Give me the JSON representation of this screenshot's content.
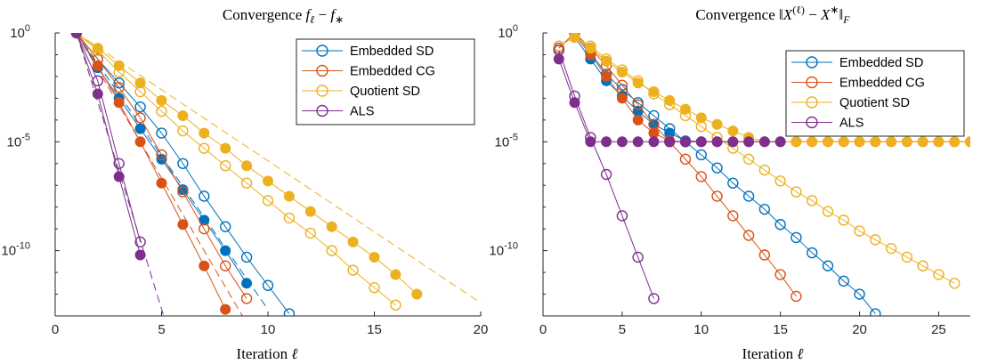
{
  "colors": {
    "embedded_sd": "#0072BD",
    "embedded_cg": "#D95319",
    "quotient_sd": "#EDB120",
    "als": "#7E2F8E"
  },
  "chart_data": [
    {
      "type": "line",
      "title": "Convergence f_ℓ − f_*",
      "title_parts": {
        "prefix": "Convergence ",
        "var": "f",
        "sub_l": "ℓ",
        "minus": " − ",
        "var2": "f",
        "sub_star": "∗"
      },
      "xlabel": "Iteration ℓ",
      "xlabel_parts": {
        "word": "Iteration ",
        "var": "ℓ"
      },
      "ylabel": "",
      "xlim": [
        0,
        20
      ],
      "ylim_exp": [
        -13,
        0
      ],
      "yscale": "log",
      "xticks": [
        0,
        5,
        10,
        15,
        20
      ],
      "yticks_exp": [
        0,
        -5,
        -10
      ],
      "ytick_labels": [
        "10",
        "10",
        "10"
      ],
      "ytick_exps": [
        "0",
        "-5",
        "-10"
      ],
      "grid": false,
      "legend_position": "top-right",
      "legend": [
        "Embedded SD",
        "Embedded CG",
        "Quotient SD",
        "ALS"
      ],
      "series": [
        {
          "name": "Embedded SD",
          "color_key": "embedded_sd",
          "markers": "open",
          "x": [
            1,
            2,
            3,
            4,
            5,
            6,
            7,
            8,
            9,
            10,
            11
          ],
          "y_exp": [
            0,
            -1.2,
            -2.3,
            -3.4,
            -4.6,
            -6.0,
            -7.5,
            -8.9,
            -10.3,
            -11.6,
            -12.9
          ]
        },
        {
          "name": "Embedded SD",
          "color_key": "embedded_sd",
          "markers": "filled",
          "x": [
            1,
            2,
            3,
            4,
            5,
            6,
            7,
            8,
            9
          ],
          "y_exp": [
            0,
            -1.6,
            -3.0,
            -4.4,
            -5.8,
            -7.2,
            -8.6,
            -10.0,
            -11.5
          ]
        },
        {
          "name": "Embedded CG",
          "color_key": "embedded_cg",
          "markers": "open",
          "x": [
            1,
            2,
            3,
            4,
            5,
            6,
            7,
            8,
            9
          ],
          "y_exp": [
            0,
            -1.2,
            -2.5,
            -3.9,
            -5.6,
            -7.3,
            -9.0,
            -10.7,
            -12.2
          ]
        },
        {
          "name": "Embedded CG",
          "color_key": "embedded_cg",
          "markers": "filled",
          "x": [
            1,
            2,
            3,
            4,
            5,
            6,
            7,
            8
          ],
          "y_exp": [
            0,
            -1.5,
            -3.2,
            -5.0,
            -6.9,
            -8.8,
            -10.7,
            -12.7
          ]
        },
        {
          "name": "Quotient SD",
          "color_key": "quotient_sd",
          "markers": "open",
          "x": [
            1,
            2,
            3,
            4,
            5,
            6,
            7,
            8,
            9,
            10,
            11,
            12,
            13,
            14,
            15,
            16
          ],
          "y_exp": [
            0,
            -0.8,
            -1.8,
            -2.7,
            -3.6,
            -4.5,
            -5.3,
            -6.1,
            -6.9,
            -7.7,
            -8.5,
            -9.2,
            -10.0,
            -10.9,
            -11.7,
            -12.5
          ]
        },
        {
          "name": "Quotient SD",
          "color_key": "quotient_sd",
          "markers": "filled",
          "x": [
            1,
            2,
            3,
            4,
            5,
            6,
            7,
            8,
            9,
            10,
            11,
            12,
            13,
            14,
            15,
            16,
            17
          ],
          "y_exp": [
            0,
            -0.7,
            -1.5,
            -2.3,
            -3.1,
            -3.8,
            -4.6,
            -5.3,
            -6.1,
            -6.8,
            -7.5,
            -8.2,
            -8.9,
            -9.6,
            -10.3,
            -11.1,
            -12.0
          ]
        },
        {
          "name": "ALS",
          "color_key": "als",
          "markers": "open",
          "x": [
            1,
            2,
            3,
            4
          ],
          "y_exp": [
            0,
            -2.2,
            -6.0,
            -9.6
          ]
        },
        {
          "name": "ALS",
          "color_key": "als",
          "markers": "filled",
          "x": [
            1,
            2,
            3,
            4
          ],
          "y_exp": [
            0,
            -2.8,
            -6.6,
            -10.2
          ]
        }
      ],
      "reference_lines": [
        {
          "color_key": "embedded_sd",
          "x": [
            1,
            10
          ],
          "y_exp": [
            0,
            -12.7
          ]
        },
        {
          "color_key": "embedded_cg",
          "x": [
            1,
            8.8
          ],
          "y_exp": [
            0,
            -13
          ]
        },
        {
          "color_key": "quotient_sd",
          "x": [
            1,
            20
          ],
          "y_exp": [
            0,
            -12.4
          ]
        },
        {
          "color_key": "als",
          "x": [
            1,
            5.1
          ],
          "y_exp": [
            0,
            -13
          ]
        }
      ]
    },
    {
      "type": "line",
      "title": "Convergence ‖X^(ℓ) − X^*‖_F",
      "title_parts": {
        "prefix": "Convergence ‖",
        "var": "X",
        "sup_l": "(ℓ)",
        "minus": " − ",
        "var2": "X",
        "sup_star": "∗",
        "close": "‖",
        "sub_F": "F"
      },
      "xlabel": "Iteration ℓ",
      "xlabel_parts": {
        "word": "Iteration ",
        "var": "ℓ"
      },
      "ylabel": "",
      "xlim": [
        0,
        27
      ],
      "ylim_exp": [
        -13,
        0
      ],
      "yscale": "log",
      "xticks": [
        0,
        5,
        10,
        15,
        20,
        25
      ],
      "yticks_exp": [
        0,
        -5,
        -10
      ],
      "ytick_labels": [
        "10",
        "10",
        "10"
      ],
      "ytick_exps": [
        "0",
        "-5",
        "-10"
      ],
      "grid": false,
      "legend_position": "top-right",
      "legend": [
        "Embedded SD",
        "Embedded CG",
        "Quotient SD",
        "ALS"
      ],
      "series": [
        {
          "name": "Embedded SD",
          "color_key": "embedded_sd",
          "markers": "open",
          "x": [
            1,
            2,
            3,
            4,
            5,
            6,
            7,
            8,
            9,
            10,
            11,
            12,
            13,
            14,
            15,
            16,
            17,
            18,
            19,
            20,
            21
          ],
          "y_exp": [
            -0.7,
            0,
            -0.9,
            -1.9,
            -2.6,
            -3.2,
            -3.8,
            -4.4,
            -5.0,
            -5.6,
            -6.2,
            -6.9,
            -7.5,
            -8.1,
            -8.8,
            -9.4,
            -10.1,
            -10.7,
            -11.4,
            -12.0,
            -12.9
          ]
        },
        {
          "name": "Embedded SD",
          "color_key": "embedded_sd",
          "markers": "filled",
          "x": [
            2,
            3,
            4,
            5,
            6,
            7,
            8,
            9,
            10
          ],
          "y_exp": [
            -0.2,
            -1.2,
            -2.2,
            -2.9,
            -3.6,
            -4.2,
            -4.6,
            -4.95,
            -5.0
          ]
        },
        {
          "name": "Embedded CG",
          "color_key": "embedded_cg",
          "markers": "open",
          "x": [
            1,
            2,
            3,
            4,
            5,
            6,
            7,
            8,
            9,
            10,
            11,
            12,
            13,
            14,
            15,
            16
          ],
          "y_exp": [
            -0.7,
            0,
            -0.7,
            -1.5,
            -2.4,
            -3.3,
            -4.2,
            -5.0,
            -5.8,
            -6.6,
            -7.5,
            -8.4,
            -9.3,
            -10.2,
            -11.1,
            -12.1
          ]
        },
        {
          "name": "Embedded CG",
          "color_key": "embedded_cg",
          "markers": "filled",
          "x": [
            2,
            3,
            4,
            5,
            6,
            7,
            8,
            9,
            10,
            11,
            12,
            13,
            14,
            15,
            16,
            17,
            18,
            19,
            20,
            21,
            22,
            23,
            24,
            25,
            26,
            27
          ],
          "y_exp": [
            -0.1,
            -1.0,
            -2.0,
            -3.0,
            -4.0,
            -4.6,
            -4.95,
            -5.0,
            -5.0,
            -5.0,
            -5.0,
            -5.0,
            -5.0,
            -5.0,
            -5.0,
            -5.0,
            -5.0,
            -5.0,
            -5.0,
            -5.0,
            -5.0,
            -5.0,
            -5.0,
            -5.0,
            -5.0,
            -5.0
          ]
        },
        {
          "name": "Quotient SD",
          "color_key": "quotient_sd",
          "markers": "open",
          "x": [
            1,
            2,
            3,
            4,
            5,
            6,
            7,
            8,
            9,
            10,
            11,
            12,
            13,
            14,
            15,
            16,
            17,
            18,
            19,
            20,
            21,
            22,
            23,
            24,
            25,
            26
          ],
          "y_exp": [
            -0.6,
            -0.2,
            -0.6,
            -1.2,
            -1.7,
            -2.2,
            -2.8,
            -3.3,
            -3.8,
            -4.3,
            -4.8,
            -5.3,
            -5.8,
            -6.3,
            -6.8,
            -7.3,
            -7.7,
            -8.2,
            -8.6,
            -9.1,
            -9.5,
            -9.9,
            -10.3,
            -10.7,
            -11.1,
            -11.5
          ]
        },
        {
          "name": "Quotient SD",
          "color_key": "quotient_sd",
          "markers": "filled",
          "x": [
            2,
            3,
            4,
            5,
            6,
            7,
            8,
            9,
            10,
            11,
            12,
            13,
            14,
            15,
            16,
            17,
            18,
            19,
            20,
            21,
            22,
            23,
            24,
            25,
            26,
            27
          ],
          "y_exp": [
            -0.2,
            -0.7,
            -1.3,
            -1.8,
            -2.3,
            -2.7,
            -3.1,
            -3.5,
            -3.9,
            -4.2,
            -4.5,
            -4.8,
            -5.0,
            -5.0,
            -5.0,
            -5.0,
            -5.0,
            -5.0,
            -5.0,
            -5.0,
            -5.0,
            -5.0,
            -5.0,
            -5.0,
            -5.0,
            -5.0
          ]
        },
        {
          "name": "ALS",
          "color_key": "als",
          "markers": "open",
          "x": [
            1,
            2,
            3,
            4,
            5,
            6,
            7
          ],
          "y_exp": [
            -0.8,
            -2.9,
            -4.8,
            -6.5,
            -8.4,
            -10.3,
            -12.2
          ]
        },
        {
          "name": "ALS",
          "color_key": "als",
          "markers": "filled",
          "x": [
            1,
            2,
            3,
            4,
            5,
            6,
            7,
            8,
            9,
            10,
            11,
            12,
            13,
            14,
            15
          ],
          "y_exp": [
            -1.2,
            -3.2,
            -5.0,
            -5.0,
            -5.0,
            -5.0,
            -5.0,
            -5.0,
            -5.0,
            -5.0,
            -5.0,
            -5.0,
            -5.0,
            -5.0,
            -5.0
          ]
        }
      ],
      "reference_lines": []
    }
  ]
}
